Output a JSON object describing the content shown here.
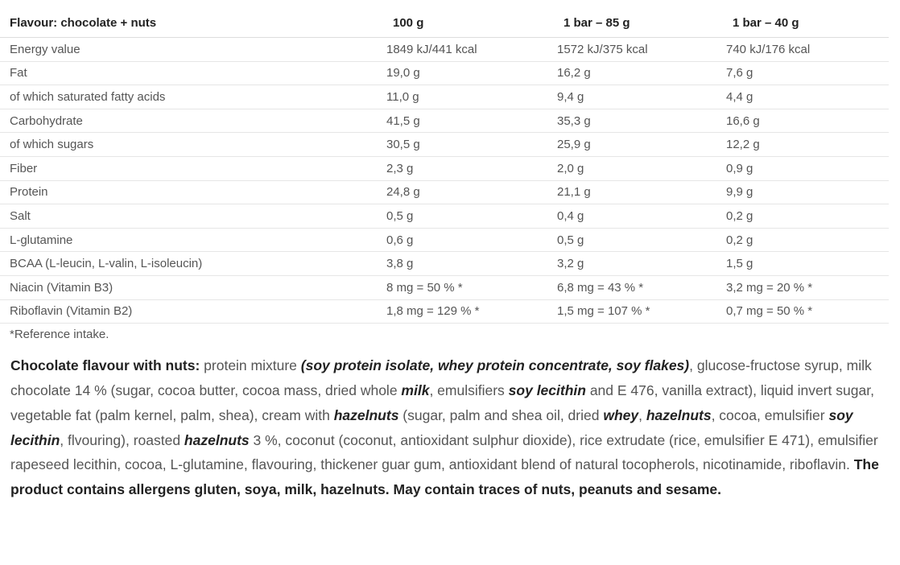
{
  "table": {
    "headers": [
      "Flavour: chocolate + nuts",
      "100 g",
      "1 bar – 85 g",
      "1 bar – 40 g"
    ],
    "rows": [
      [
        "Energy value",
        "1849 kJ/441 kcal",
        "1572 kJ/375 kcal",
        "740 kJ/176 kcal"
      ],
      [
        "Fat",
        "19,0 g",
        "16,2 g",
        "7,6 g"
      ],
      [
        "of which saturated fatty acids",
        "11,0 g",
        "9,4 g",
        "4,4 g"
      ],
      [
        "Carbohydrate",
        "41,5 g",
        "35,3 g",
        "16,6 g"
      ],
      [
        "of which sugars",
        "30,5 g",
        "25,9 g",
        "12,2 g"
      ],
      [
        "Fiber",
        "2,3 g",
        "2,0 g",
        "0,9 g"
      ],
      [
        "Protein",
        "24,8 g",
        "21,1 g",
        "9,9 g"
      ],
      [
        "Salt",
        "0,5 g",
        "0,4 g",
        "0,2 g"
      ],
      [
        "L-glutamine",
        "0,6 g",
        "0,5 g",
        "0,2 g"
      ],
      [
        "BCAA (L-leucin, L-valin, L-isoleucin)",
        "3,8 g",
        "3,2 g",
        "1,5 g"
      ],
      [
        "Niacin (Vitamin B3)",
        "8 mg = 50 % *",
        "6,8 mg = 43 % *",
        "3,2 mg = 20 % *"
      ],
      [
        "Riboflavin (Vitamin B2)",
        "1,8 mg = 129 % *",
        "1,5 mg = 107 % *",
        "0,7 mg = 50 % *"
      ]
    ]
  },
  "footnote": "*Reference intake.",
  "ingredients": [
    {
      "t": "Chocolate flavour with nuts:",
      "s": "b"
    },
    {
      "t": " protein mixture ",
      "s": ""
    },
    {
      "t": "(soy protein isolate, whey protein concentrate, soy flakes)",
      "s": "bi"
    },
    {
      "t": ", glucose-fructose syrup, milk chocolate 14 % (sugar, cocoa butter, cocoa mass, dried whole ",
      "s": ""
    },
    {
      "t": "milk",
      "s": "bi"
    },
    {
      "t": ", emulsifiers ",
      "s": ""
    },
    {
      "t": "soy lecithin",
      "s": "bi"
    },
    {
      "t": " and E 476, vanilla extract), liquid invert sugar, vegetable fat (palm kernel, palm, shea), cream with ",
      "s": ""
    },
    {
      "t": "hazelnuts",
      "s": "bi"
    },
    {
      "t": " (sugar, palm and shea oil, dried ",
      "s": ""
    },
    {
      "t": "whey",
      "s": "bi"
    },
    {
      "t": ", ",
      "s": ""
    },
    {
      "t": "hazelnuts",
      "s": "bi"
    },
    {
      "t": ", cocoa, emulsifier ",
      "s": ""
    },
    {
      "t": "soy lecithin",
      "s": "bi"
    },
    {
      "t": ", flvouring), roasted ",
      "s": ""
    },
    {
      "t": "hazelnuts",
      "s": "bi"
    },
    {
      "t": " 3 %, coconut (coconut, antioxidant sulphur dioxide), rice extrudate (rice, emulsifier E 471), emulsifier rapeseed lecithin, cocoa, L-glutamine, flavouring, thickener guar gum, antioxidant blend of natural tocopherols, nicotinamide, riboflavin. ",
      "s": ""
    },
    {
      "t": "The product contains allergens gluten, soya, milk, hazelnuts. May contain traces of nuts, peanuts and sesame.",
      "s": "b"
    }
  ]
}
